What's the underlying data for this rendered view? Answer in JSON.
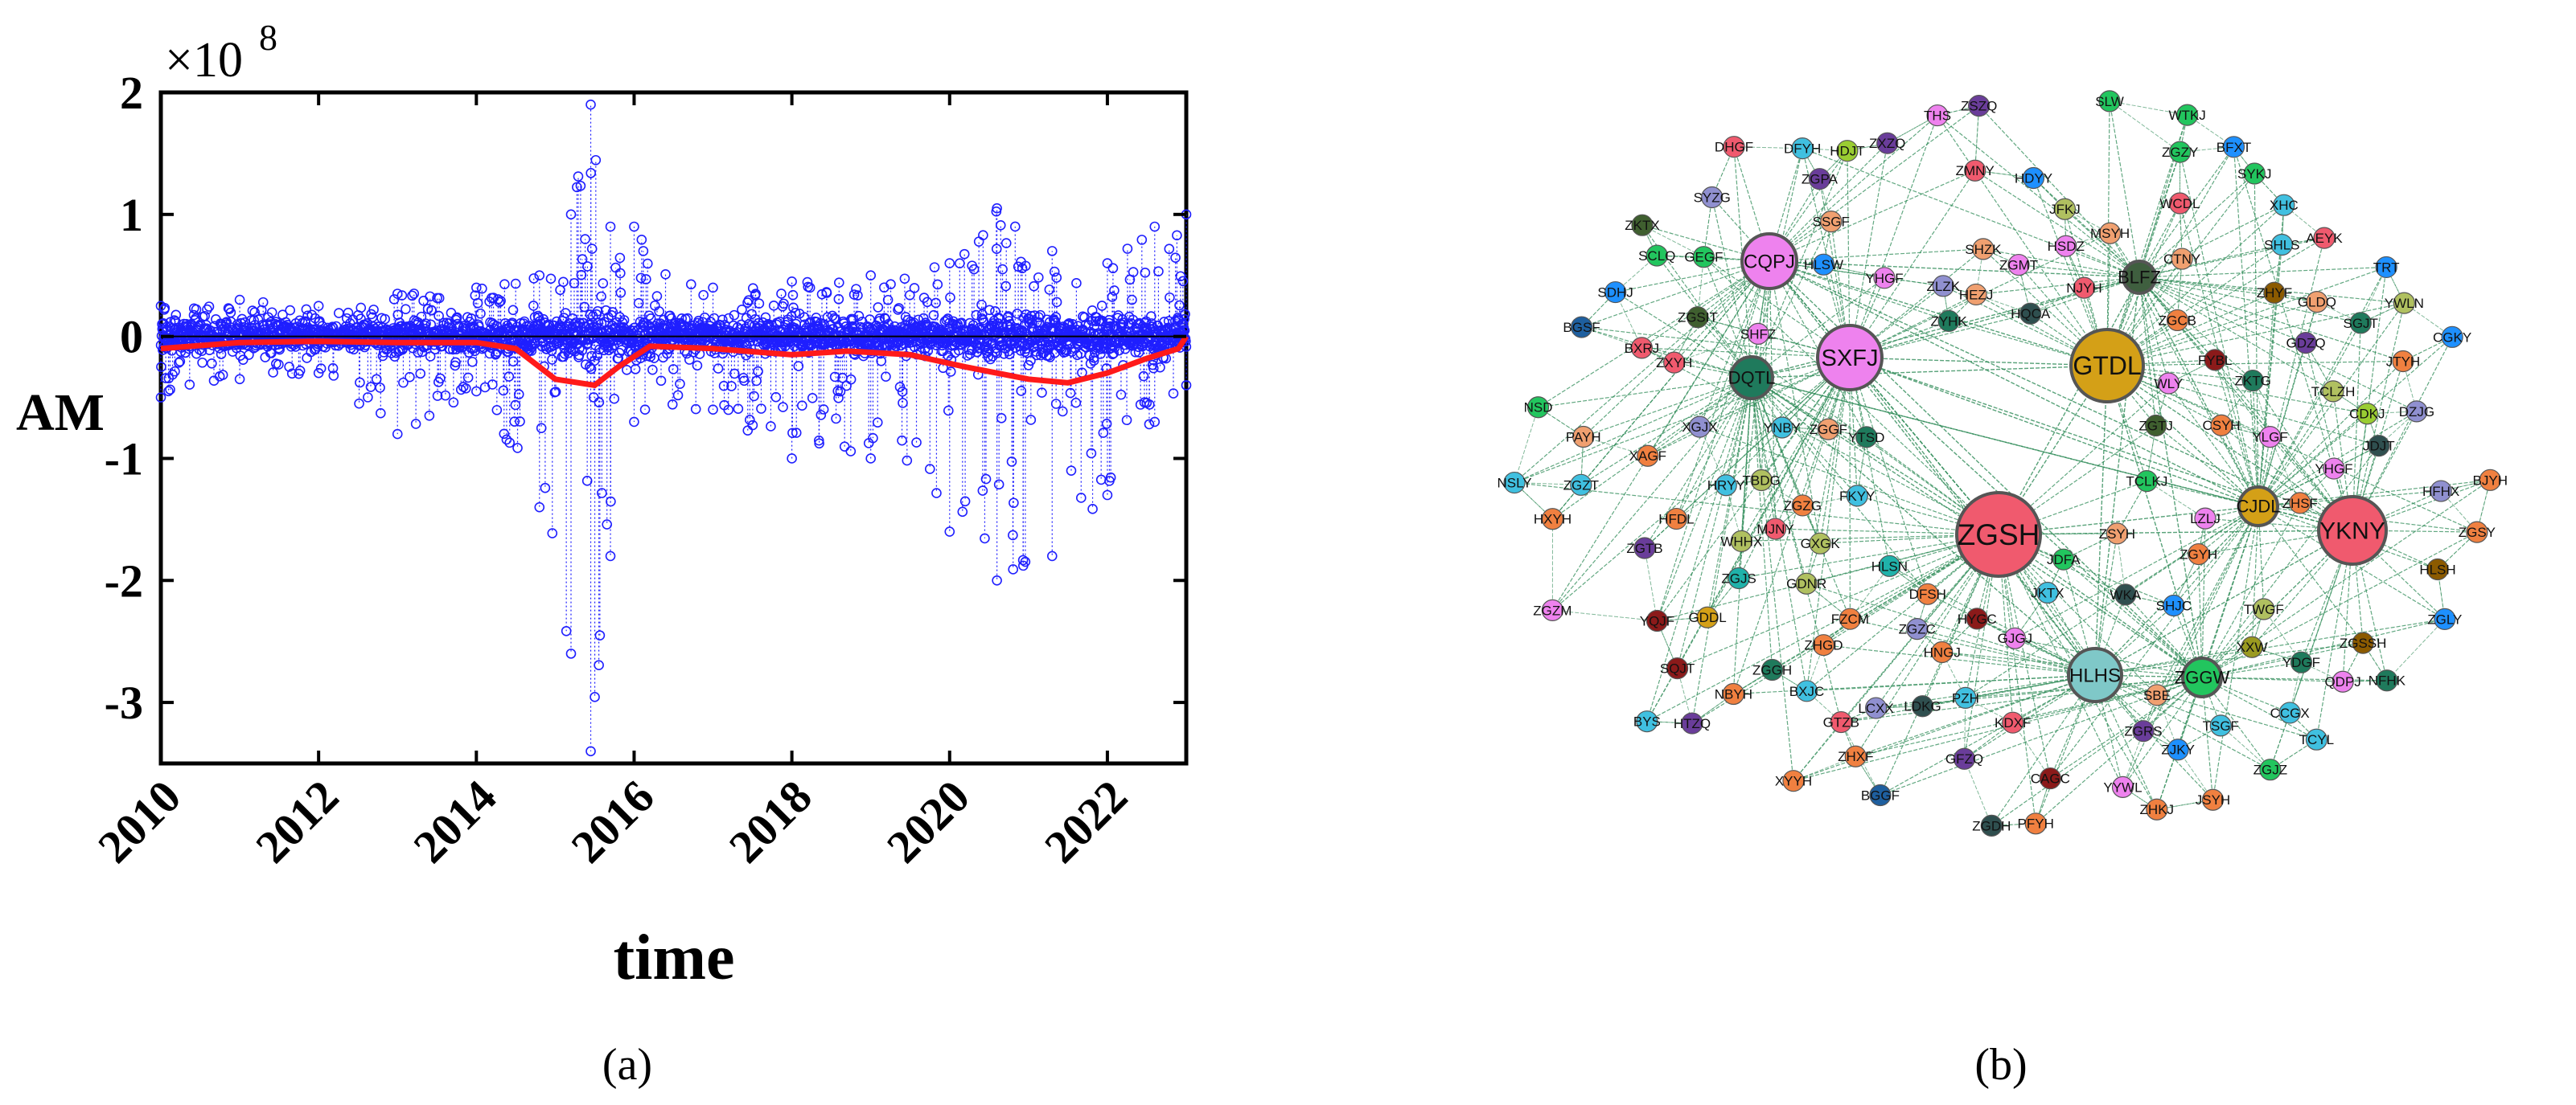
{
  "chart_data": [
    {
      "type": "scatter",
      "panel_label": "(a)",
      "title": "",
      "xlabel": "time",
      "ylabel": "AM",
      "y_exponent_label": "×10",
      "y_exponent": "8",
      "xlim": [
        2010,
        2023
      ],
      "ylim": [
        -3.5,
        2
      ],
      "x_ticks": [
        2010,
        2012,
        2014,
        2016,
        2018,
        2020,
        2022
      ],
      "x_tick_labels": [
        "2010",
        "2012",
        "2014",
        "2016",
        "2018",
        "2020",
        "2022"
      ],
      "y_ticks": [
        -3,
        -2,
        -1,
        0,
        1,
        2
      ],
      "y_tick_labels": [
        "-3",
        "-2",
        "-1",
        "0",
        "1",
        "2"
      ],
      "grid": false,
      "legend": "none",
      "series": [
        {
          "style": "scatter-open-circles-with-dotted-stems",
          "color": "#1f1fff",
          "envelope": [
            {
              "x": 2010.0,
              "min": -0.5,
              "max": 0.25
            },
            {
              "x": 2011.0,
              "min": -0.35,
              "max": 0.3
            },
            {
              "x": 2012.0,
              "min": -0.3,
              "max": 0.25
            },
            {
              "x": 2013.0,
              "min": -0.8,
              "max": 0.35
            },
            {
              "x": 2014.0,
              "min": -0.45,
              "max": 0.4
            },
            {
              "x": 2014.8,
              "min": -1.4,
              "max": 0.5
            },
            {
              "x": 2015.2,
              "min": -2.6,
              "max": 1.0
            },
            {
              "x": 2015.45,
              "min": -3.4,
              "max": 1.9
            },
            {
              "x": 2015.7,
              "min": -1.8,
              "max": 0.9
            },
            {
              "x": 2016.0,
              "min": -0.7,
              "max": 0.9
            },
            {
              "x": 2017.0,
              "min": -0.6,
              "max": 0.4
            },
            {
              "x": 2018.0,
              "min": -1.0,
              "max": 0.45
            },
            {
              "x": 2019.0,
              "min": -1.0,
              "max": 0.5
            },
            {
              "x": 2020.0,
              "min": -1.6,
              "max": 0.6
            },
            {
              "x": 2020.6,
              "min": -2.0,
              "max": 1.05
            },
            {
              "x": 2021.3,
              "min": -1.8,
              "max": 0.7
            },
            {
              "x": 2022.0,
              "min": -1.3,
              "max": 0.6
            },
            {
              "x": 2022.6,
              "min": -0.7,
              "max": 0.9
            },
            {
              "x": 2023.0,
              "min": -0.4,
              "max": 1.0
            }
          ]
        },
        {
          "style": "line",
          "color": "#ff1a1a",
          "x": [
            2010.0,
            2011.0,
            2012.0,
            2013.0,
            2014.0,
            2014.5,
            2015.0,
            2015.5,
            2015.8,
            2016.2,
            2017.0,
            2018.0,
            2018.7,
            2019.5,
            2020.2,
            2021.0,
            2021.5,
            2022.0,
            2022.5,
            2022.9,
            2023.0
          ],
          "y": [
            -0.1,
            -0.05,
            -0.04,
            -0.05,
            -0.05,
            -0.1,
            -0.35,
            -0.4,
            -0.25,
            -0.08,
            -0.1,
            -0.15,
            -0.12,
            -0.15,
            -0.25,
            -0.35,
            -0.38,
            -0.3,
            -0.18,
            -0.1,
            0.0
          ]
        }
      ]
    },
    {
      "type": "network",
      "panel_label": "(b)",
      "title": "",
      "edge_color": "#2e8b57",
      "hubs": [
        {
          "label": "ZGSH",
          "color": "#f05a6e"
        },
        {
          "label": "GTDL",
          "color": "#d4a017"
        },
        {
          "label": "SXFJ",
          "color": "#ee82ee"
        },
        {
          "label": "YKNY",
          "color": "#f05a6e"
        },
        {
          "label": "CQPJ",
          "color": "#ee82ee"
        },
        {
          "label": "HLHS",
          "color": "#7fc8c8"
        },
        {
          "label": "DQTL",
          "color": "#1f7a5c"
        },
        {
          "label": "CJDL",
          "color": "#d4a017"
        },
        {
          "label": "ZGGW",
          "color": "#22c55e"
        },
        {
          "label": "BLFZ",
          "color": "#3f5f3f"
        }
      ],
      "nodes": [
        {
          "label": "PFYH",
          "color": "#f08040"
        },
        {
          "label": "ZKTX",
          "color": "#3f5f2f"
        },
        {
          "label": "HLSH",
          "color": "#8b5a00"
        },
        {
          "label": "HLSN",
          "color": "#20b2aa"
        },
        {
          "label": "ZGLY",
          "color": "#1e90ff"
        },
        {
          "label": "CDKJ",
          "color": "#9acd32"
        },
        {
          "label": "ZGTB",
          "color": "#6a3d9a"
        },
        {
          "label": "SCLQ",
          "color": "#22c55e"
        },
        {
          "label": "JFKJ",
          "color": "#b0c060"
        },
        {
          "label": "HXYH",
          "color": "#f08040"
        },
        {
          "label": "ZGGH",
          "color": "#1f7a5c"
        },
        {
          "label": "ZGSSH",
          "color": "#8b5a00"
        },
        {
          "label": "JSYH",
          "color": "#f08040"
        },
        {
          "label": "XXW",
          "color": "#9a9a20"
        },
        {
          "label": "ZGZG",
          "color": "#f08040"
        },
        {
          "label": "YDGF",
          "color": "#1f7a5c"
        },
        {
          "label": "HQCA",
          "color": "#2f4f4f"
        },
        {
          "label": "GFZQ",
          "color": "#6a3d9a"
        },
        {
          "label": "ZHGD",
          "color": "#f08040"
        },
        {
          "label": "PAYH",
          "color": "#f0a070"
        },
        {
          "label": "ZGZC",
          "color": "#9090d0"
        },
        {
          "label": "SHLS",
          "color": "#40c0e0"
        },
        {
          "label": "BYS",
          "color": "#40c0e0"
        },
        {
          "label": "TBDG",
          "color": "#b0c060"
        },
        {
          "label": "ZGDH",
          "color": "#2f4f4f"
        },
        {
          "label": "ZGSIT",
          "color": "#3f5f2f"
        },
        {
          "label": "SBE",
          "color": "#f0a070"
        },
        {
          "label": "JDFA",
          "color": "#22c55e"
        },
        {
          "label": "HDJT",
          "color": "#9acd32"
        },
        {
          "label": "ZSZQ",
          "color": "#6a3d9a"
        },
        {
          "label": "SYZG",
          "color": "#9090d0"
        },
        {
          "label": "XAGF",
          "color": "#f08040"
        },
        {
          "label": "SLW",
          "color": "#22c55e"
        },
        {
          "label": "XYYH",
          "color": "#f08040"
        },
        {
          "label": "JTYH",
          "color": "#f08040"
        },
        {
          "label": "JKTX",
          "color": "#40c0e0"
        },
        {
          "label": "BGGF",
          "color": "#1e5f9f"
        },
        {
          "label": "ZGMT",
          "color": "#ee82ee"
        },
        {
          "label": "ZGJS",
          "color": "#20b2aa"
        },
        {
          "label": "FZCM",
          "color": "#f08040"
        },
        {
          "label": "ZGCB",
          "color": "#f08040"
        },
        {
          "label": "WHHX",
          "color": "#b0c060"
        },
        {
          "label": "XGJX",
          "color": "#9090d0"
        },
        {
          "label": "TWGF",
          "color": "#b0c060"
        },
        {
          "label": "XHC",
          "color": "#40c0e0"
        },
        {
          "label": "CAGC",
          "color": "#8b1a1a"
        },
        {
          "label": "BGSF",
          "color": "#1e5f9f"
        },
        {
          "label": "ZGZM",
          "color": "#ee82ee"
        },
        {
          "label": "FYBL",
          "color": "#8b1a1a"
        },
        {
          "label": "WTKJ",
          "color": "#22c55e"
        },
        {
          "label": "ZGTJ",
          "color": "#3f5f2f"
        },
        {
          "label": "YLGF",
          "color": "#ee82ee"
        },
        {
          "label": "YWLN",
          "color": "#b0c060"
        },
        {
          "label": "TCLKJ",
          "color": "#22c55e"
        },
        {
          "label": "CCGX",
          "color": "#40c0e0"
        },
        {
          "label": "NSLY",
          "color": "#40c0e0"
        },
        {
          "label": "ZGRS",
          "color": "#6a3d9a"
        },
        {
          "label": "ZGGF",
          "color": "#f0a070"
        },
        {
          "label": "YHGF",
          "color": "#ee82ee"
        },
        {
          "label": "MJNY",
          "color": "#f05a6e"
        },
        {
          "label": "WLY",
          "color": "#ee82ee"
        },
        {
          "label": "CTNY",
          "color": "#f0a070"
        },
        {
          "label": "PZH",
          "color": "#40c0e0"
        },
        {
          "label": "HFHX",
          "color": "#9090d0"
        },
        {
          "label": "BXRJ",
          "color": "#f05a6e"
        },
        {
          "label": "HDYY",
          "color": "#1e90ff"
        },
        {
          "label": "HNGJ",
          "color": "#f08040"
        },
        {
          "label": "ZHSF",
          "color": "#f08040"
        },
        {
          "label": "NSD",
          "color": "#22c55e"
        },
        {
          "label": "BJYH",
          "color": "#f08040"
        },
        {
          "label": "KDXF",
          "color": "#f05a6e"
        },
        {
          "label": "ZKTG",
          "color": "#1f7a5c"
        },
        {
          "label": "TCYL",
          "color": "#40c0e0"
        },
        {
          "label": "ZJKY",
          "color": "#1e90ff"
        },
        {
          "label": "GDZQ",
          "color": "#6a3d9a"
        },
        {
          "label": "FKYY",
          "color": "#40c0e0"
        },
        {
          "label": "LDKG",
          "color": "#2f4f4f"
        },
        {
          "label": "ZSYH",
          "color": "#f0a070"
        },
        {
          "label": "ZHKJ",
          "color": "#f08040"
        },
        {
          "label": "SDHJ",
          "color": "#1e90ff"
        },
        {
          "label": "TSGF",
          "color": "#40c0e0"
        },
        {
          "label": "GLDQ",
          "color": "#f0a070"
        },
        {
          "label": "HTZQ",
          "color": "#6a3d9a"
        },
        {
          "label": "WCDL",
          "color": "#f05a6e"
        },
        {
          "label": "YHGF",
          "color": "#ee82ee"
        },
        {
          "label": "BFXT",
          "color": "#1e90ff"
        },
        {
          "label": "HSDZ",
          "color": "#ee82ee"
        },
        {
          "label": "YQJF",
          "color": "#8b1a1a"
        },
        {
          "label": "THS",
          "color": "#ee82ee"
        },
        {
          "label": "HRYY",
          "color": "#40c0e0"
        },
        {
          "label": "SQJT",
          "color": "#8b1a1a"
        },
        {
          "label": "NJYH",
          "color": "#f05a6e"
        },
        {
          "label": "AEYK",
          "color": "#f05a6e"
        },
        {
          "label": "HFDL",
          "color": "#f08040"
        },
        {
          "label": "LCXX",
          "color": "#9090d0"
        },
        {
          "label": "DZJG",
          "color": "#9090d0"
        },
        {
          "label": "MSYH",
          "color": "#f0a070"
        },
        {
          "label": "GDDL",
          "color": "#d4a017"
        },
        {
          "label": "ZYHK",
          "color": "#1f7a5c"
        },
        {
          "label": "ZXYH",
          "color": "#f05a6e"
        },
        {
          "label": "TRT",
          "color": "#1e90ff"
        },
        {
          "label": "CSYH",
          "color": "#f08040"
        },
        {
          "label": "HEZJ",
          "color": "#f0a070"
        },
        {
          "label": "SYKJ",
          "color": "#22c55e"
        },
        {
          "label": "GEGF",
          "color": "#22c55e"
        },
        {
          "label": "GDNR",
          "color": "#b0c060"
        },
        {
          "label": "ZGJZ",
          "color": "#22c55e"
        },
        {
          "label": "ZGZT",
          "color": "#40c0e0"
        },
        {
          "label": "BXJC",
          "color": "#40c0e0"
        },
        {
          "label": "SSGF",
          "color": "#f0a070"
        },
        {
          "label": "ZMNY",
          "color": "#f05a6e"
        },
        {
          "label": "ZLZK",
          "color": "#9090d0"
        },
        {
          "label": "TCLZH",
          "color": "#b0c060"
        },
        {
          "label": "ZGPA",
          "color": "#6a3d9a"
        },
        {
          "label": "QDPJ",
          "color": "#ee82ee"
        },
        {
          "label": "ZGYH",
          "color": "#f08040"
        },
        {
          "label": "LZLJ",
          "color": "#ee82ee"
        },
        {
          "label": "SHZK",
          "color": "#f0a070"
        },
        {
          "label": "NFHK",
          "color": "#1f7a5c"
        },
        {
          "label": "ZHXF",
          "color": "#f08040"
        },
        {
          "label": "ZXZQ",
          "color": "#6a3d9a"
        },
        {
          "label": "GXGK",
          "color": "#b0c060"
        },
        {
          "label": "ZGZY",
          "color": "#22c55e"
        },
        {
          "label": "CGKY",
          "color": "#1e90ff"
        },
        {
          "label": "SHFZ",
          "color": "#ee82ee"
        },
        {
          "label": "DFSH",
          "color": "#f08040"
        },
        {
          "label": "DHGF",
          "color": "#f05a6e"
        },
        {
          "label": "SHJC",
          "color": "#1e90ff"
        },
        {
          "label": "GTZB",
          "color": "#f05a6e"
        },
        {
          "label": "YTSD",
          "color": "#1f7a5c"
        },
        {
          "label": "SGJT",
          "color": "#1f7a5c"
        },
        {
          "label": "NBYH",
          "color": "#f08040"
        },
        {
          "label": "YNBY",
          "color": "#40c0e0"
        },
        {
          "label": "ZHYF",
          "color": "#8b5a00"
        },
        {
          "label": "JDJT",
          "color": "#2f4f4f"
        },
        {
          "label": "DFYH",
          "color": "#40c0e0"
        },
        {
          "label": "HYGC",
          "color": "#8b1a1a"
        },
        {
          "label": "HLSW",
          "color": "#1e90ff"
        },
        {
          "label": "YYWL",
          "color": "#ee82ee"
        },
        {
          "label": "ZGSY",
          "color": "#f08040"
        },
        {
          "label": "GJGJ",
          "color": "#ee82ee"
        },
        {
          "label": "WKA",
          "color": "#2f4f4f"
        }
      ]
    }
  ]
}
